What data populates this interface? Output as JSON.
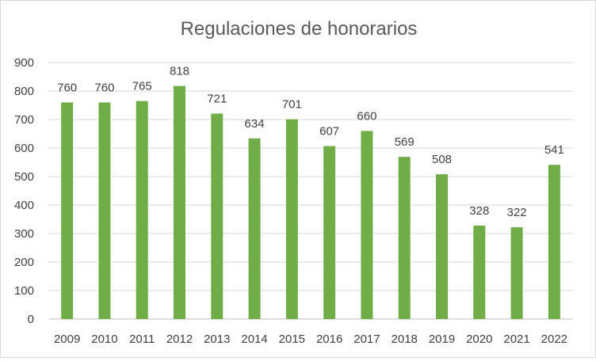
{
  "chart_data": {
    "type": "bar",
    "title": "Regulaciones de honorarios",
    "xlabel": "",
    "ylabel": "",
    "categories": [
      "2009",
      "2010",
      "2011",
      "2012",
      "2013",
      "2014",
      "2015",
      "2016",
      "2017",
      "2018",
      "2019",
      "2020",
      "2021",
      "2022"
    ],
    "values": [
      760,
      760,
      765,
      818,
      721,
      634,
      701,
      607,
      660,
      569,
      508,
      328,
      322,
      541
    ],
    "ylim": [
      0,
      900
    ],
    "yticks": [
      0,
      100,
      200,
      300,
      400,
      500,
      600,
      700,
      800,
      900
    ],
    "grid": true,
    "legend": "none",
    "data_labels": true,
    "bar_color": "#70ad47"
  }
}
